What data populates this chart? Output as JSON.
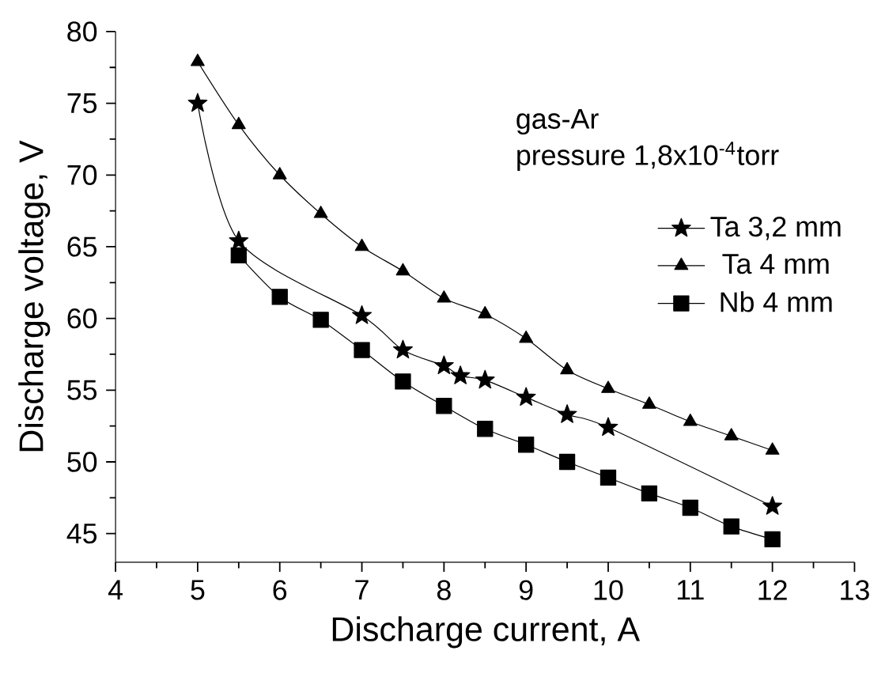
{
  "chart_data": {
    "type": "line",
    "xlabel": "Discharge current, A",
    "ylabel": "Discharge voltage, V",
    "xlim": [
      4,
      13
    ],
    "xticks": [
      4,
      5,
      6,
      7,
      8,
      9,
      10,
      11,
      12,
      13
    ],
    "ylim": [
      43,
      80
    ],
    "yticks": [
      45,
      50,
      55,
      60,
      65,
      70,
      75,
      80
    ],
    "legend": "right",
    "annotations": [
      "gas-Ar",
      "pressure 1,8x10$^{-4}$torr"
    ],
    "series": [
      {
        "name": "Ta 3,2 mm",
        "color": "#000000",
        "marker": "star",
        "x": [
          5,
          5.5,
          7,
          7.5,
          8,
          8.2,
          8.5,
          9,
          9.5,
          10,
          12
        ],
        "values": [
          75.0,
          65.4,
          60.2,
          57.8,
          56.7,
          56.0,
          55.7,
          54.5,
          53.3,
          52.4,
          46.9
        ]
      },
      {
        "name": "Ta 4 mm",
        "color": "#000000",
        "marker": "triangle",
        "x": [
          5,
          5.5,
          6,
          6.5,
          7,
          7.5,
          8,
          8.5,
          9,
          9.5,
          10,
          10.5,
          11,
          11.5,
          12
        ],
        "values": [
          77.9,
          73.5,
          70.0,
          67.3,
          65.0,
          63.3,
          61.4,
          60.3,
          58.6,
          56.4,
          55.1,
          54.0,
          52.8,
          51.8,
          50.8
        ]
      },
      {
        "name": "Nb 4 mm",
        "color": "#000000",
        "marker": "square",
        "x": [
          5.5,
          6,
          6.5,
          7,
          7.5,
          8,
          8.5,
          9,
          9.5,
          10,
          10.5,
          11,
          11.5,
          12
        ],
        "values": [
          64.4,
          61.5,
          59.9,
          57.8,
          55.6,
          53.9,
          52.3,
          51.2,
          50.0,
          48.9,
          47.8,
          46.8,
          45.5,
          44.6
        ]
      }
    ]
  }
}
